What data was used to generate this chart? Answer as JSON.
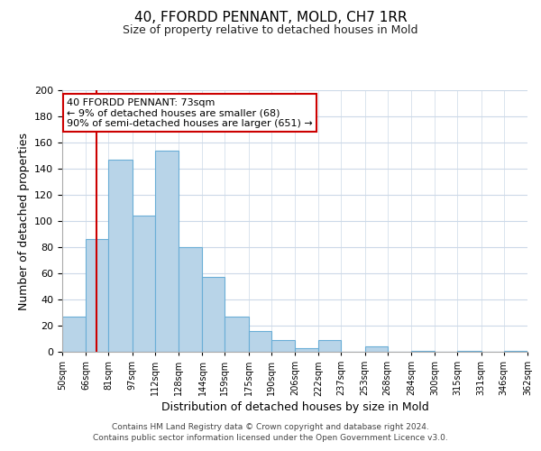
{
  "title": "40, FFORDD PENNANT, MOLD, CH7 1RR",
  "subtitle": "Size of property relative to detached houses in Mold",
  "xlabel": "Distribution of detached houses by size in Mold",
  "ylabel": "Number of detached properties",
  "bar_left_edges": [
    50,
    66,
    81,
    97,
    112,
    128,
    144,
    159,
    175,
    190,
    206,
    222,
    237,
    253,
    268,
    284,
    300,
    315,
    331,
    346
  ],
  "bar_widths": [
    16,
    15,
    16,
    15,
    16,
    16,
    15,
    16,
    15,
    16,
    16,
    15,
    16,
    15,
    16,
    16,
    15,
    16,
    15,
    16
  ],
  "bar_heights": [
    27,
    86,
    147,
    104,
    154,
    80,
    57,
    27,
    16,
    9,
    3,
    9,
    0,
    4,
    0,
    1,
    0,
    1,
    0,
    1
  ],
  "bar_color": "#b8d4e8",
  "bar_edge_color": "#6aaed6",
  "ylim": [
    0,
    200
  ],
  "yticks": [
    0,
    20,
    40,
    60,
    80,
    100,
    120,
    140,
    160,
    180,
    200
  ],
  "xlim": [
    50,
    362
  ],
  "xtick_labels": [
    "50sqm",
    "66sqm",
    "81sqm",
    "97sqm",
    "112sqm",
    "128sqm",
    "144sqm",
    "159sqm",
    "175sqm",
    "190sqm",
    "206sqm",
    "222sqm",
    "237sqm",
    "253sqm",
    "268sqm",
    "284sqm",
    "300sqm",
    "315sqm",
    "331sqm",
    "346sqm",
    "362sqm"
  ],
  "xtick_positions": [
    50,
    66,
    81,
    97,
    112,
    128,
    144,
    159,
    175,
    190,
    206,
    222,
    237,
    253,
    268,
    284,
    300,
    315,
    331,
    346,
    362
  ],
  "property_line_x": 73,
  "property_line_color": "#cc0000",
  "annotation_title": "40 FFORDD PENNANT: 73sqm",
  "annotation_line1": "← 9% of detached houses are smaller (68)",
  "annotation_line2": "90% of semi-detached houses are larger (651) →",
  "annotation_box_facecolor": "#ffffff",
  "annotation_box_edgecolor": "#cc0000",
  "footer_line1": "Contains HM Land Registry data © Crown copyright and database right 2024.",
  "footer_line2": "Contains public sector information licensed under the Open Government Licence v3.0.",
  "background_color": "#ffffff",
  "grid_color": "#ccd9e8"
}
